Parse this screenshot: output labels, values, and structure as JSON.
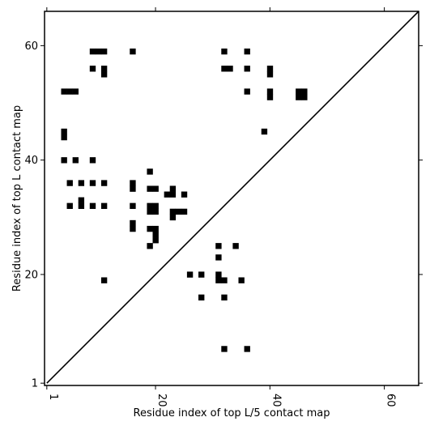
{
  "chart_data": {
    "type": "scatter",
    "marker": "square",
    "xlabel": "Residue index of top L/5 contact map",
    "ylabel": "Residue index of top L contact map",
    "xlim": [
      0.6,
      66
    ],
    "ylim": [
      0.6,
      66
    ],
    "xticks": [
      1,
      20,
      40,
      60
    ],
    "yticks": [
      1,
      20,
      40,
      60
    ],
    "xtick_labels": [
      "1",
      "20",
      "40",
      "60"
    ],
    "ytick_labels": [
      "1",
      "20",
      "40",
      "60"
    ],
    "xtick_label_rotation": 90,
    "grid": false,
    "colors": {
      "points": "#000000",
      "diagonal": "#000000",
      "frame": "#000000"
    },
    "diagonal": {
      "from": [
        1,
        1
      ],
      "to": [
        66,
        66
      ]
    },
    "series": [
      {
        "points": [
          [
            9,
            59
          ],
          [
            10,
            59
          ],
          [
            11,
            59
          ],
          [
            16,
            59
          ],
          [
            32,
            59
          ],
          [
            36,
            59
          ],
          [
            9,
            56
          ],
          [
            11,
            56
          ],
          [
            11,
            55
          ],
          [
            32,
            56
          ],
          [
            33,
            56
          ],
          [
            36,
            56
          ],
          [
            40,
            56
          ],
          [
            40,
            55
          ],
          [
            4,
            52
          ],
          [
            5,
            52
          ],
          [
            6,
            52
          ],
          [
            36,
            52
          ],
          [
            40,
            52
          ],
          [
            40,
            51
          ],
          [
            45,
            52
          ],
          [
            46,
            52
          ],
          [
            45,
            51
          ],
          [
            46,
            51
          ],
          [
            4,
            45
          ],
          [
            4,
            44
          ],
          [
            39,
            45
          ],
          [
            4,
            40
          ],
          [
            6,
            40
          ],
          [
            9,
            40
          ],
          [
            19,
            38
          ],
          [
            5,
            36
          ],
          [
            7,
            36
          ],
          [
            9,
            36
          ],
          [
            11,
            36
          ],
          [
            16,
            36
          ],
          [
            16,
            35
          ],
          [
            19,
            35
          ],
          [
            20,
            35
          ],
          [
            23,
            35
          ],
          [
            22,
            34
          ],
          [
            23,
            34
          ],
          [
            25,
            34
          ],
          [
            7,
            33
          ],
          [
            7,
            32
          ],
          [
            5,
            32
          ],
          [
            9,
            32
          ],
          [
            11,
            32
          ],
          [
            16,
            32
          ],
          [
            19,
            32
          ],
          [
            20,
            32
          ],
          [
            19,
            31
          ],
          [
            20,
            31
          ],
          [
            23,
            31
          ],
          [
            24,
            31
          ],
          [
            25,
            31
          ],
          [
            23,
            30
          ],
          [
            16,
            29
          ],
          [
            16,
            28
          ],
          [
            19,
            28
          ],
          [
            20,
            28
          ],
          [
            20,
            27
          ],
          [
            20,
            26
          ],
          [
            19,
            25
          ],
          [
            31,
            25
          ],
          [
            34,
            25
          ],
          [
            31,
            23
          ],
          [
            26,
            20
          ],
          [
            28,
            20
          ],
          [
            31,
            20
          ],
          [
            31,
            19
          ],
          [
            32,
            19
          ],
          [
            35,
            19
          ],
          [
            11,
            19
          ],
          [
            28,
            16
          ],
          [
            32,
            16
          ],
          [
            32,
            7
          ],
          [
            36,
            7
          ]
        ]
      }
    ]
  }
}
